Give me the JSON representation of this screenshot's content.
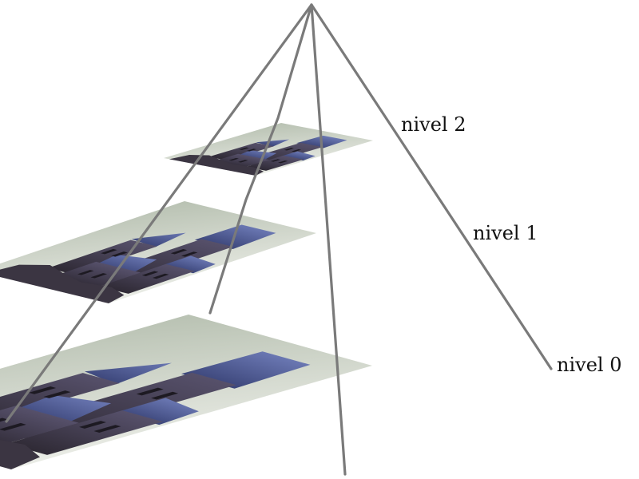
{
  "levels": [
    {
      "label": "nivel 2"
    },
    {
      "label": "nivel 1"
    },
    {
      "label": "nivel 0"
    }
  ],
  "colors": {
    "edge": "#7a7a7a",
    "background_light": "#e4e6df",
    "background_mid": "#c4cbbd",
    "castle_roof": "#4d5a95",
    "castle_stone": "#433a4a"
  }
}
